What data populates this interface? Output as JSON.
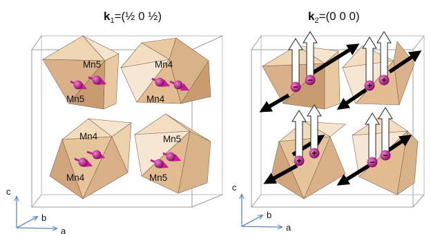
{
  "panels": [
    {
      "title": {
        "bold": "k",
        "sub": "1",
        "rest": "=(½ 0 ½)"
      },
      "atoms": [
        {
          "label": "Mn5"
        },
        {
          "label": "Mn5"
        },
        {
          "label": "Mn4"
        },
        {
          "label": "Mn4"
        },
        {
          "label": "Mn4"
        },
        {
          "label": "Mn4"
        },
        {
          "label": "Mn5"
        },
        {
          "label": "Mn5"
        }
      ],
      "axes": {
        "c": "c",
        "b": "b",
        "a": "a"
      }
    },
    {
      "title": {
        "bold": "k",
        "sub": "2",
        "rest": "=(0 0 0)"
      },
      "signs": [
        "−",
        "−",
        "+",
        "+",
        "+",
        "+",
        "−",
        "−"
      ],
      "axes": {
        "c": "c",
        "b": "b",
        "a": "a"
      }
    }
  ],
  "colors": {
    "polyhedron_light": "#f6e4cc",
    "polyhedron_mid": "#e9c9a0",
    "polyhedron_dark": "#cfa377",
    "atom": "#c21f8f",
    "moment_arrow_panel1": "#c21f8f",
    "moment_arrow_white": "#ffffff",
    "moment_arrow_black": "#000000",
    "cell_edge": "#9a9a9a",
    "axis": "#5b86c2"
  }
}
